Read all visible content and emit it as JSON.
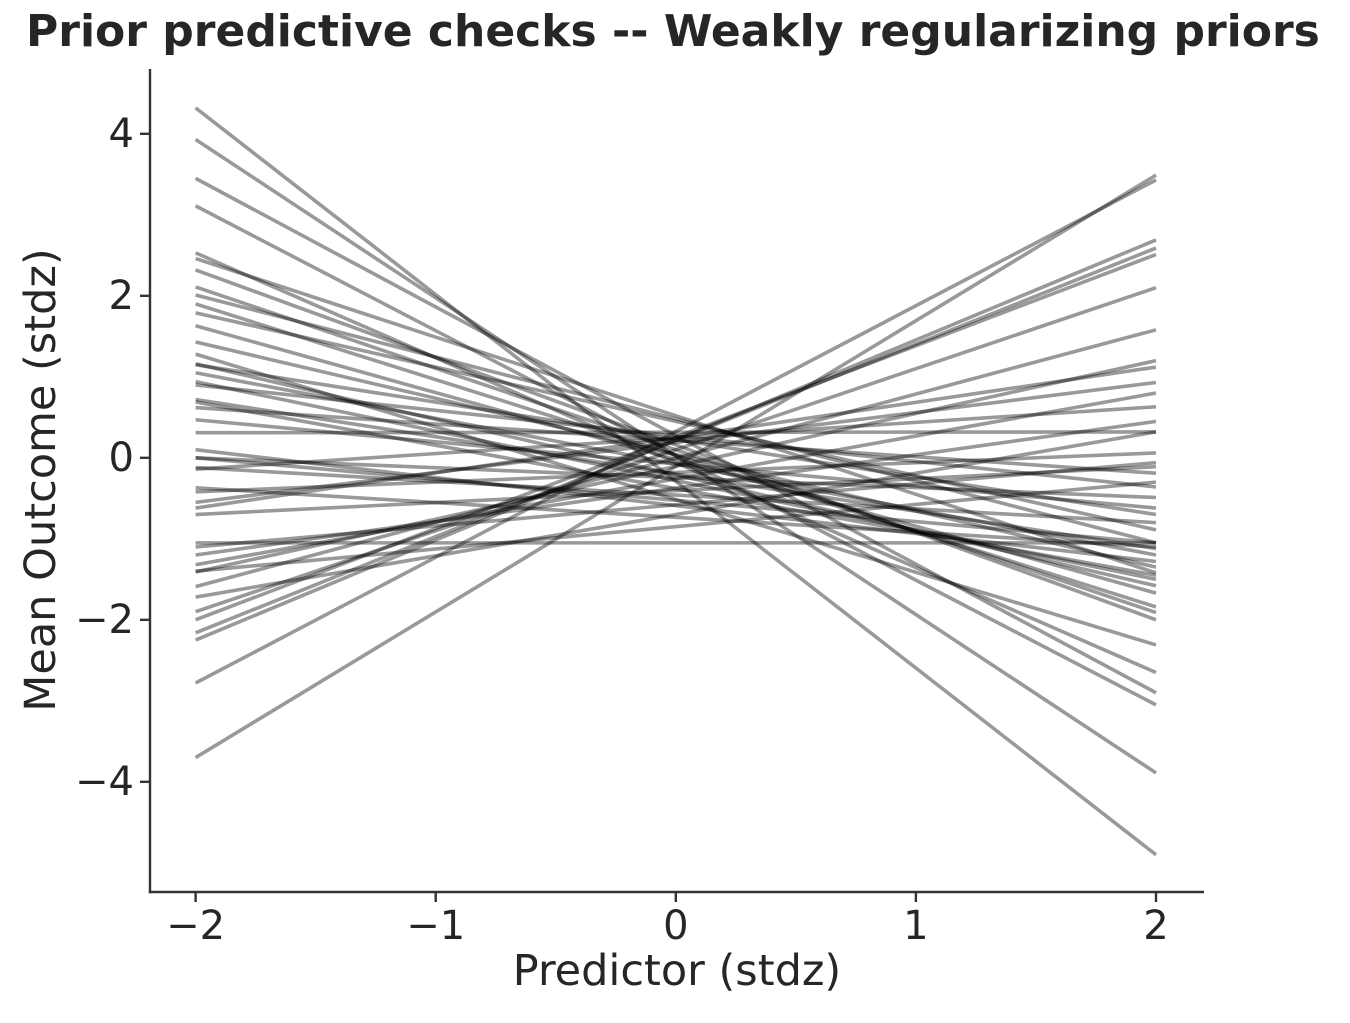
{
  "chart_data": {
    "type": "line",
    "title": "Prior predictive checks -- Weakly regularizing priors",
    "xlabel": "Predictor (stdz)",
    "ylabel": "Mean Outcome (stdz)",
    "xlim": [
      -2.19,
      2.2
    ],
    "ylim": [
      -5.36,
      4.8
    ],
    "x_span_of_lines": [
      -2,
      2
    ],
    "xticks": [
      -2,
      -1,
      0,
      1,
      2
    ],
    "xtick_labels": [
      "−2",
      "−1",
      "0",
      "1",
      "2"
    ],
    "yticks": [
      -4,
      -2,
      0,
      2,
      4
    ],
    "ytick_labels": [
      "−4",
      "−2",
      "0",
      "2",
      "4"
    ],
    "grid": false,
    "legend": false,
    "line_style": {
      "color": "#000000",
      "opacity": 0.4,
      "width": 3.6
    },
    "axis_color": "#333333",
    "text_color": "#262626",
    "background_color": "#ffffff",
    "lines": [
      {
        "y_left": 4.32,
        "y_right": -4.9
      },
      {
        "y_left": 3.93,
        "y_right": -3.89
      },
      {
        "y_left": 3.45,
        "y_right": -2.9
      },
      {
        "y_left": 3.11,
        "y_right": -3.05
      },
      {
        "y_left": 2.53,
        "y_right": -2.65
      },
      {
        "y_left": 2.46,
        "y_right": -1.42
      },
      {
        "y_left": 2.32,
        "y_right": -2.0
      },
      {
        "y_left": 2.11,
        "y_right": -1.91
      },
      {
        "y_left": 2.01,
        "y_right": -1.05
      },
      {
        "y_left": 1.9,
        "y_right": -1.84
      },
      {
        "y_left": 1.79,
        "y_right": -0.89
      },
      {
        "y_left": 1.63,
        "y_right": -1.67
      },
      {
        "y_left": 1.43,
        "y_right": -1.35
      },
      {
        "y_left": 1.28,
        "y_right": -2.31
      },
      {
        "y_left": 1.16,
        "y_right": -1.58
      },
      {
        "y_left": 1.15,
        "y_right": -0.7
      },
      {
        "y_left": 1.05,
        "y_right": -1.2
      },
      {
        "y_left": 0.94,
        "y_right": -1.5
      },
      {
        "y_left": 0.9,
        "y_right": -0.36
      },
      {
        "y_left": 0.72,
        "y_right": -1.12
      },
      {
        "y_left": 0.69,
        "y_right": -1.45
      },
      {
        "y_left": 0.62,
        "y_right": -0.19
      },
      {
        "y_left": 0.47,
        "y_right": -0.62
      },
      {
        "y_left": 0.31,
        "y_right": 0.32
      },
      {
        "y_left": 0.1,
        "y_right": -1.28
      },
      {
        "y_left": 0.0,
        "y_right": -0.49
      },
      {
        "y_left": 0.0,
        "y_right": -1.05
      },
      {
        "y_left": -0.12,
        "y_right": -0.8
      },
      {
        "y_left": -0.14,
        "y_right": 0.63
      },
      {
        "y_left": -0.37,
        "y_right": -1.1
      },
      {
        "y_left": -0.42,
        "y_right": 0.06
      },
      {
        "y_left": -0.55,
        "y_right": 0.93
      },
      {
        "y_left": -0.62,
        "y_right": 1.12
      },
      {
        "y_left": -0.7,
        "y_right": -0.11
      },
      {
        "y_left": -1.05,
        "y_right": -1.05
      },
      {
        "y_left": -1.1,
        "y_right": -0.06
      },
      {
        "y_left": -1.2,
        "y_right": 0.45
      },
      {
        "y_left": -1.32,
        "y_right": 0.8
      },
      {
        "y_left": -1.4,
        "y_right": -0.3
      },
      {
        "y_left": -1.41,
        "y_right": 1.2
      },
      {
        "y_left": -1.59,
        "y_right": 1.58
      },
      {
        "y_left": -1.72,
        "y_right": 0.32
      },
      {
        "y_left": -1.9,
        "y_right": 2.1
      },
      {
        "y_left": -2.0,
        "y_right": 2.51
      },
      {
        "y_left": -2.16,
        "y_right": 2.59
      },
      {
        "y_left": -2.25,
        "y_right": 2.69
      },
      {
        "y_left": -2.78,
        "y_right": 3.43
      },
      {
        "y_left": -3.7,
        "y_right": 3.49
      }
    ]
  }
}
